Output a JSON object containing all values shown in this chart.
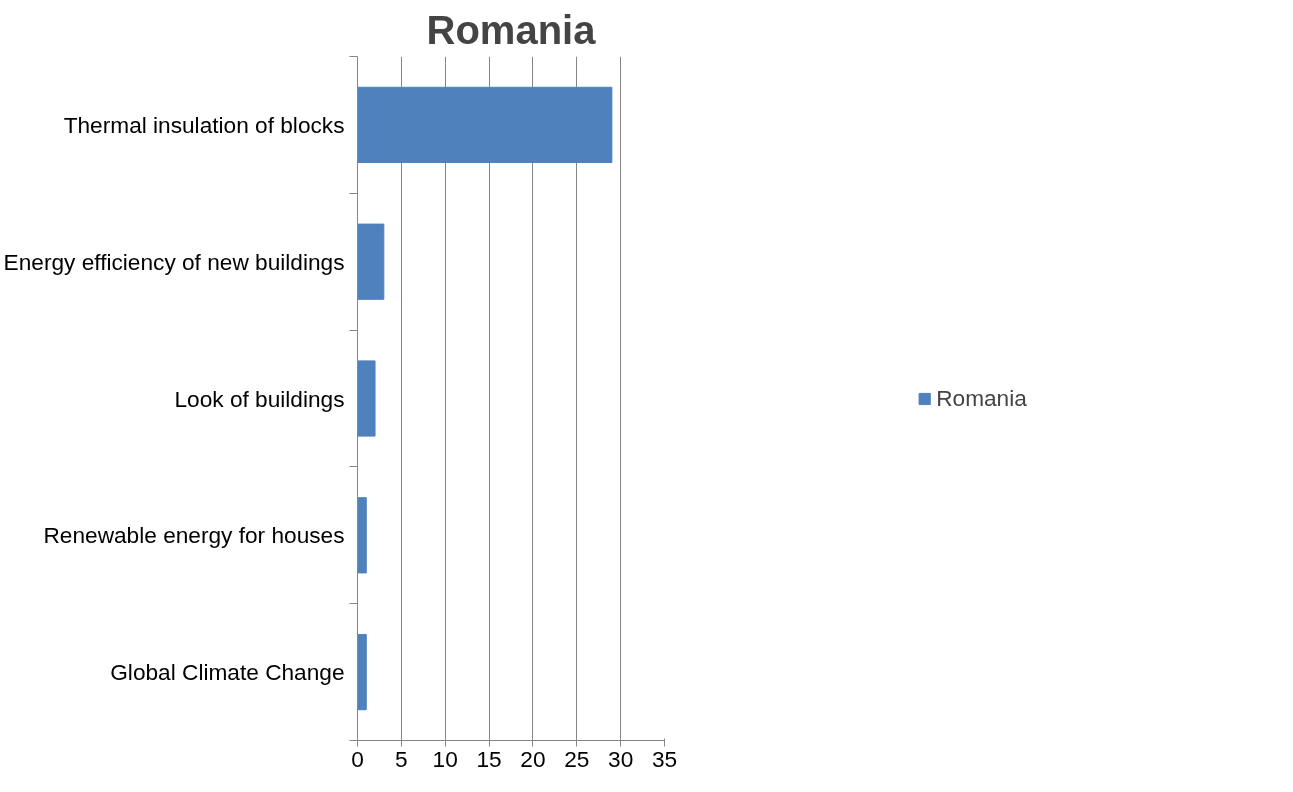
{
  "chart_data": {
    "type": "bar",
    "orientation": "horizontal",
    "title": "Romania",
    "categories": [
      "Thermal insulation of blocks",
      "Energy efficiency of new buildings",
      "Look of buildings",
      "Renewable energy for houses",
      "Global Climate Change"
    ],
    "series": [
      {
        "name": "Romania",
        "color": "#4f81bd",
        "values": [
          29,
          3,
          2,
          1,
          1
        ]
      }
    ],
    "xlim": [
      0,
      35
    ],
    "xticks": [
      0,
      5,
      10,
      15,
      20,
      25,
      30,
      35
    ],
    "grid": "x",
    "legend": "right"
  }
}
